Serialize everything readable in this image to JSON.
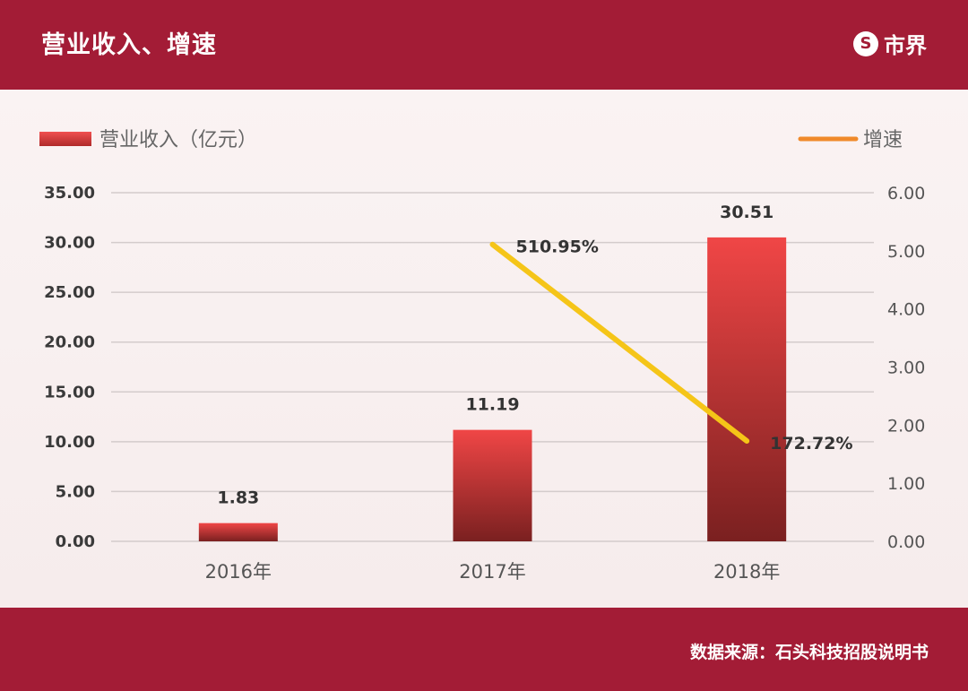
{
  "header": {
    "title": "营业收入、增速",
    "logo_badge": "S",
    "logo_text": "市界"
  },
  "footer": {
    "source": "数据来源：石头科技招股说明书"
  },
  "colors": {
    "band": "#a31c36",
    "bar_top": "#f04646",
    "bar_bottom": "#7a2020",
    "line": "#f5c518",
    "legend_line": "#f08a2a"
  },
  "chart_data": {
    "type": "bar",
    "categories": [
      "2016年",
      "2017年",
      "2018年"
    ],
    "series": [
      {
        "name": "营业收入（亿元）",
        "type": "bar",
        "axis": "left",
        "values": [
          1.83,
          11.19,
          30.51
        ],
        "labels": [
          "1.83",
          "11.19",
          "30.51"
        ]
      },
      {
        "name": "增速",
        "type": "line",
        "axis": "right",
        "values": [
          null,
          5.1095,
          1.7272
        ],
        "labels": [
          "",
          "510.95%",
          "172.72%"
        ]
      }
    ],
    "ylim": [
      0,
      35
    ],
    "y_ticks": [
      "0.00",
      "5.00",
      "10.00",
      "15.00",
      "20.00",
      "25.00",
      "30.00",
      "35.00"
    ],
    "y2lim": [
      0,
      6
    ],
    "y2_ticks": [
      "0.00",
      "1.00",
      "2.00",
      "3.00",
      "4.00",
      "5.00",
      "6.00"
    ],
    "grid": true,
    "legend_position": "top"
  }
}
